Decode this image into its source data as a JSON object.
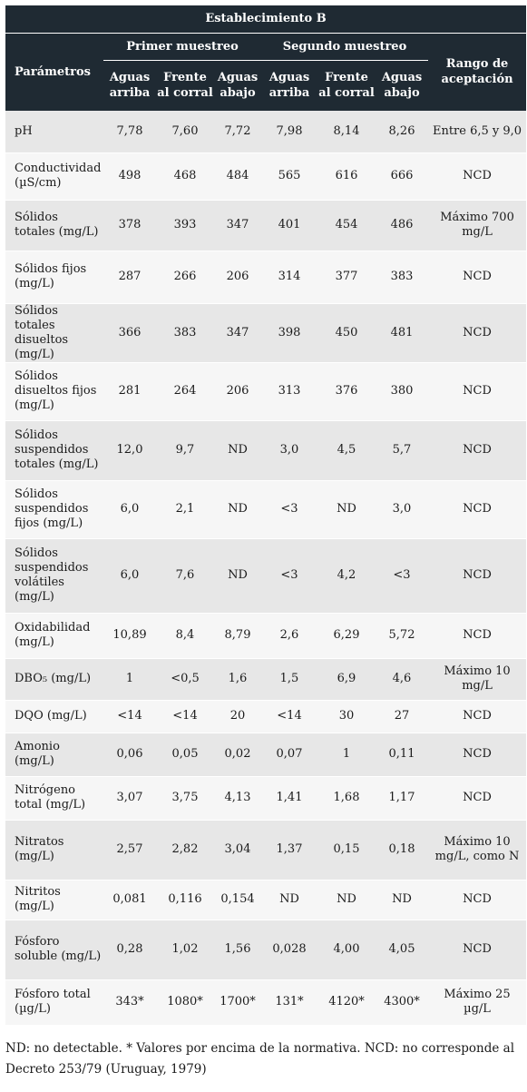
{
  "table": {
    "title": "Establecimiento B",
    "group1": "Primer muestreo",
    "group2": "Segundo muestreo",
    "col_params": "Parámetros",
    "col_range": "Rango de aceptación",
    "sub1": "Aguas arriba",
    "sub2": "Frente al corral",
    "sub3": "Aguas abajo",
    "sub4": "Aguas arriba",
    "sub5": "Frente al corral",
    "sub6": "Aguas abajo",
    "rows": [
      {
        "p": "pH",
        "v": [
          "7,78",
          "7,60",
          "7,72",
          "7,98",
          "8,14",
          "8,26"
        ],
        "r": "Entre 6,5 y 9,0"
      },
      {
        "p": "Conductividad (µS/cm)",
        "v": [
          "498",
          "468",
          "484",
          "565",
          "616",
          "666"
        ],
        "r": "NCD"
      },
      {
        "p": "Sólidos totales (mg/L)",
        "v": [
          "378",
          "393",
          "347",
          "401",
          "454",
          "486"
        ],
        "r": "Máximo 700 mg/L"
      },
      {
        "p": "Sólidos fijos (mg/L)",
        "v": [
          "287",
          "266",
          "206",
          "314",
          "377",
          "383"
        ],
        "r": "NCD"
      },
      {
        "p": "Sólidos totales disueltos (mg/L)",
        "v": [
          "366",
          "383",
          "347",
          "398",
          "450",
          "481"
        ],
        "r": "NCD"
      },
      {
        "p": "Sólidos disueltos fijos (mg/L)",
        "v": [
          "281",
          "264",
          "206",
          "313",
          "376",
          "380"
        ],
        "r": "NCD"
      },
      {
        "p": "Sólidos suspendidos totales (mg/L)",
        "v": [
          "12,0",
          "9,7",
          "ND",
          "3,0",
          "4,5",
          "5,7"
        ],
        "r": "NCD"
      },
      {
        "p": "Sólidos suspendidos fijos (mg/L)",
        "v": [
          "6,0",
          "2,1",
          "ND",
          "<3",
          "ND",
          "3,0"
        ],
        "r": "NCD"
      },
      {
        "p": "Sólidos suspendidos volátiles (mg/L)",
        "v": [
          "6,0",
          "7,6",
          "ND",
          "<3",
          "4,2",
          "<3"
        ],
        "r": "NCD"
      },
      {
        "p": "Oxidabilidad (mg/L)",
        "v": [
          "10,89",
          "8,4",
          "8,79",
          "2,6",
          "6,29",
          "5,72"
        ],
        "r": "NCD"
      },
      {
        "p": "DBO₅ (mg/L)",
        "v": [
          "1",
          "<0,5",
          "1,6",
          "1,5",
          "6,9",
          "4,6"
        ],
        "r": "Máximo 10 mg/L"
      },
      {
        "p": "DQO (mg/L)",
        "v": [
          "<14",
          "<14",
          "20",
          "<14",
          "30",
          "27"
        ],
        "r": "NCD"
      },
      {
        "p": "Amonio (mg/L)",
        "v": [
          "0,06",
          "0,05",
          "0,02",
          "0,07",
          "1",
          "0,11"
        ],
        "r": "NCD"
      },
      {
        "p": "Nitrógeno total (mg/L)",
        "v": [
          "3,07",
          "3,75",
          "4,13",
          "1,41",
          "1,68",
          "1,17"
        ],
        "r": "NCD"
      },
      {
        "p": "Nitratos (mg/L)",
        "v": [
          "2,57",
          "2,82",
          "3,04",
          "1,37",
          "0,15",
          "0,18"
        ],
        "r": "Máximo 10 mg/L, como N"
      },
      {
        "p": "Nitritos (mg/L)",
        "v": [
          "0,081",
          "0,116",
          "0,154",
          "ND",
          "ND",
          "ND"
        ],
        "r": "NCD"
      },
      {
        "p": "Fósforo soluble (mg/L)",
        "v": [
          "0,28",
          "1,02",
          "1,56",
          "0,028",
          "4,00",
          "4,05"
        ],
        "r": "NCD"
      },
      {
        "p": "Fósforo total (µg/L)",
        "v": [
          "343*",
          "1080*",
          "1700*",
          "131*",
          "4120*",
          "4300*"
        ],
        "r": "Máximo 25 µg/L"
      }
    ]
  },
  "footnote": "ND: no detectable. * Valores por encima de la normativa. NCD: no corresponde al Decreto 253/79 (Uruguay, 1979)"
}
